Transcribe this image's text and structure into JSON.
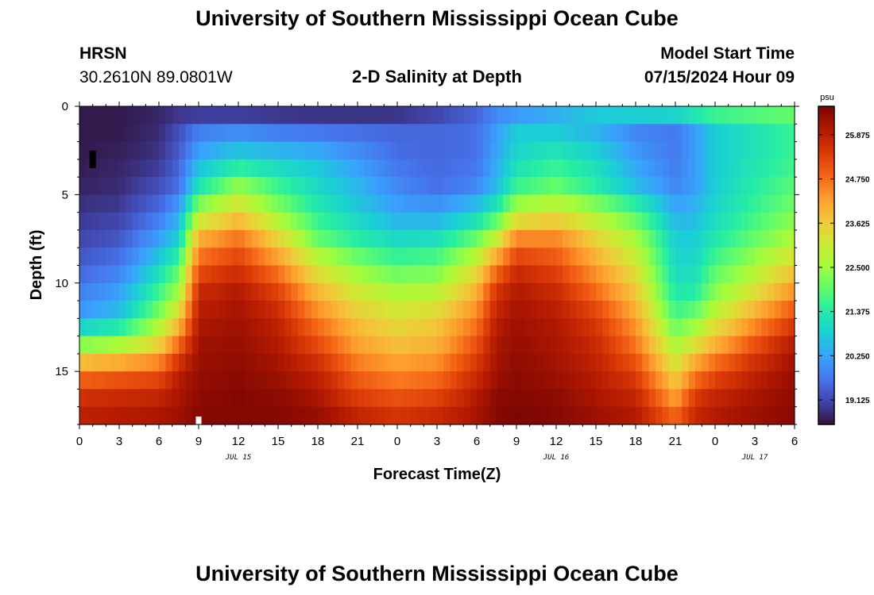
{
  "header": {
    "title": "University of Southern Mississippi Ocean Cube",
    "station_name": "HRSN",
    "station_coords": "30.2610N  89.0801W",
    "plot_title": "2-D Salinity at Depth",
    "model_start_label": "Model Start Time",
    "model_start_value": "07/15/2024 Hour 09"
  },
  "footer": {
    "title": "University of Southern Mississippi Ocean Cube"
  },
  "chart_data": {
    "type": "heatmap",
    "title": "2-D Salinity at Depth",
    "xlabel": "Forecast Time(Z)",
    "ylabel": "Depth (ft)",
    "x_range_hours": [
      0,
      54
    ],
    "y_range_ft": [
      0,
      18
    ],
    "x_ticks": [
      "0",
      "3",
      "6",
      "9",
      "12",
      "15",
      "18",
      "21",
      "0",
      "3",
      "6",
      "9",
      "12",
      "15",
      "18",
      "21",
      "0",
      "3",
      "6"
    ],
    "x_tick_hours": [
      0,
      3,
      6,
      9,
      12,
      15,
      18,
      21,
      24,
      27,
      30,
      33,
      36,
      39,
      42,
      45,
      48,
      51,
      54
    ],
    "date_labels": [
      {
        "text": "JUL 15",
        "hour": 12
      },
      {
        "text": "JUL 16",
        "hour": 36
      },
      {
        "text": "JUL 17",
        "hour": 51
      }
    ],
    "y_ticks": [
      "0",
      "5",
      "10",
      "15"
    ],
    "y_tick_values": [
      0,
      5,
      10,
      15
    ],
    "colorbar": {
      "unit": "psu",
      "min": 18.5,
      "max": 26.6,
      "labels": [
        "25.875",
        "24.750",
        "23.625",
        "22.500",
        "21.375",
        "20.250",
        "19.125"
      ],
      "label_values": [
        25.875,
        24.75,
        23.625,
        22.5,
        21.375,
        20.25,
        19.125
      ]
    },
    "colormap": [
      "#30123b",
      "#4145ab",
      "#4675ed",
      "#39a2fc",
      "#1bcfd4",
      "#24eca6",
      "#61fc6c",
      "#a4fc3b",
      "#d1e834",
      "#f3c63a",
      "#fe9b2d",
      "#f36315",
      "#d93806",
      "#b11901",
      "#7a0402"
    ],
    "grid": {
      "depths_ft": [
        0.0,
        1.5,
        3.0,
        4.5,
        6.0,
        7.5,
        9.0,
        10.5,
        12.0,
        13.5,
        15.0,
        16.5,
        18.0
      ],
      "hours": [
        0,
        3,
        6,
        7.5,
        9,
        12,
        15,
        18,
        21,
        24,
        27,
        30,
        31.5,
        33,
        36,
        39,
        42,
        45,
        46.5,
        48,
        51,
        54
      ],
      "salinity_psu": [
        [
          18.6,
          18.6,
          18.7,
          18.8,
          18.6,
          18.5,
          18.5,
          18.5,
          18.5,
          18.6,
          18.9,
          19.4,
          19.8,
          19.8,
          20.2,
          20.9,
          21.3,
          21.5,
          21.8,
          22.0,
          22.1,
          22.2
        ],
        [
          18.6,
          18.6,
          18.8,
          19.2,
          19.8,
          20.0,
          19.8,
          19.7,
          19.6,
          19.5,
          19.5,
          19.6,
          20.2,
          20.8,
          20.8,
          20.5,
          19.9,
          19.7,
          20.2,
          20.8,
          21.2,
          21.6
        ],
        [
          18.6,
          18.7,
          18.9,
          19.4,
          20.4,
          21.0,
          20.8,
          20.6,
          20.1,
          19.6,
          19.5,
          19.6,
          20.3,
          21.0,
          21.4,
          21.0,
          20.2,
          19.7,
          20.2,
          20.8,
          21.2,
          21.6
        ],
        [
          18.7,
          18.8,
          19.2,
          19.6,
          21.2,
          22.4,
          21.6,
          21.0,
          20.5,
          19.9,
          19.6,
          19.9,
          20.6,
          21.6,
          22.0,
          21.4,
          20.6,
          19.9,
          20.2,
          20.8,
          21.4,
          21.9
        ],
        [
          18.9,
          19.0,
          19.6,
          20.3,
          22.6,
          23.5,
          22.4,
          21.4,
          20.8,
          20.3,
          20.2,
          20.8,
          21.5,
          22.8,
          23.2,
          22.6,
          21.8,
          20.4,
          20.5,
          21.0,
          21.6,
          22.2
        ],
        [
          19.1,
          19.3,
          20.2,
          20.9,
          24.0,
          24.7,
          23.5,
          22.0,
          21.4,
          21.0,
          21.1,
          22.0,
          23.0,
          24.5,
          24.5,
          23.5,
          22.6,
          20.8,
          20.8,
          21.3,
          22.0,
          22.7
        ],
        [
          19.4,
          19.7,
          20.9,
          21.8,
          25.0,
          25.5,
          24.5,
          23.1,
          22.3,
          21.8,
          22.0,
          23.2,
          24.6,
          25.6,
          25.2,
          24.2,
          23.2,
          21.0,
          21.0,
          21.8,
          22.6,
          23.5
        ],
        [
          19.8,
          20.2,
          21.6,
          22.6,
          25.7,
          26.0,
          25.3,
          23.9,
          23.1,
          22.7,
          22.8,
          24.0,
          25.5,
          26.0,
          25.7,
          24.8,
          23.7,
          21.3,
          21.4,
          22.3,
          23.3,
          24.4
        ],
        [
          20.2,
          20.7,
          22.3,
          23.6,
          26.0,
          26.2,
          25.8,
          24.6,
          23.7,
          23.3,
          23.6,
          24.6,
          25.9,
          26.2,
          26.0,
          25.4,
          24.2,
          21.8,
          22.2,
          23.0,
          24.2,
          25.3
        ],
        [
          22.3,
          22.6,
          23.5,
          24.8,
          26.2,
          26.3,
          26.0,
          25.2,
          24.2,
          23.8,
          24.0,
          25.1,
          26.1,
          26.3,
          26.1,
          25.7,
          24.7,
          22.6,
          23.3,
          24.0,
          25.1,
          26.0
        ],
        [
          24.6,
          24.8,
          25.0,
          25.9,
          26.3,
          26.4,
          26.2,
          25.8,
          24.8,
          24.4,
          24.6,
          25.6,
          26.2,
          26.4,
          26.2,
          25.9,
          25.3,
          23.4,
          24.5,
          25.1,
          25.8,
          26.3
        ],
        [
          25.6,
          25.7,
          25.8,
          26.1,
          26.4,
          26.5,
          26.4,
          26.1,
          25.4,
          25.1,
          25.3,
          26.0,
          26.4,
          26.5,
          26.4,
          26.1,
          25.8,
          24.2,
          25.4,
          25.8,
          26.1,
          26.4
        ],
        [
          26.0,
          26.1,
          26.2,
          26.3,
          26.5,
          26.5,
          26.5,
          26.4,
          26.0,
          25.7,
          25.9,
          26.2,
          26.5,
          26.6,
          26.5,
          26.3,
          26.1,
          25.1,
          25.9,
          26.1,
          26.3,
          26.5
        ]
      ]
    },
    "markers": [
      {
        "color": "#000000",
        "hour": 1.0,
        "depth_ft": 3.0
      },
      {
        "color": "#ffffff",
        "hour": 9.0,
        "depth_ft": 17.8
      }
    ]
  }
}
